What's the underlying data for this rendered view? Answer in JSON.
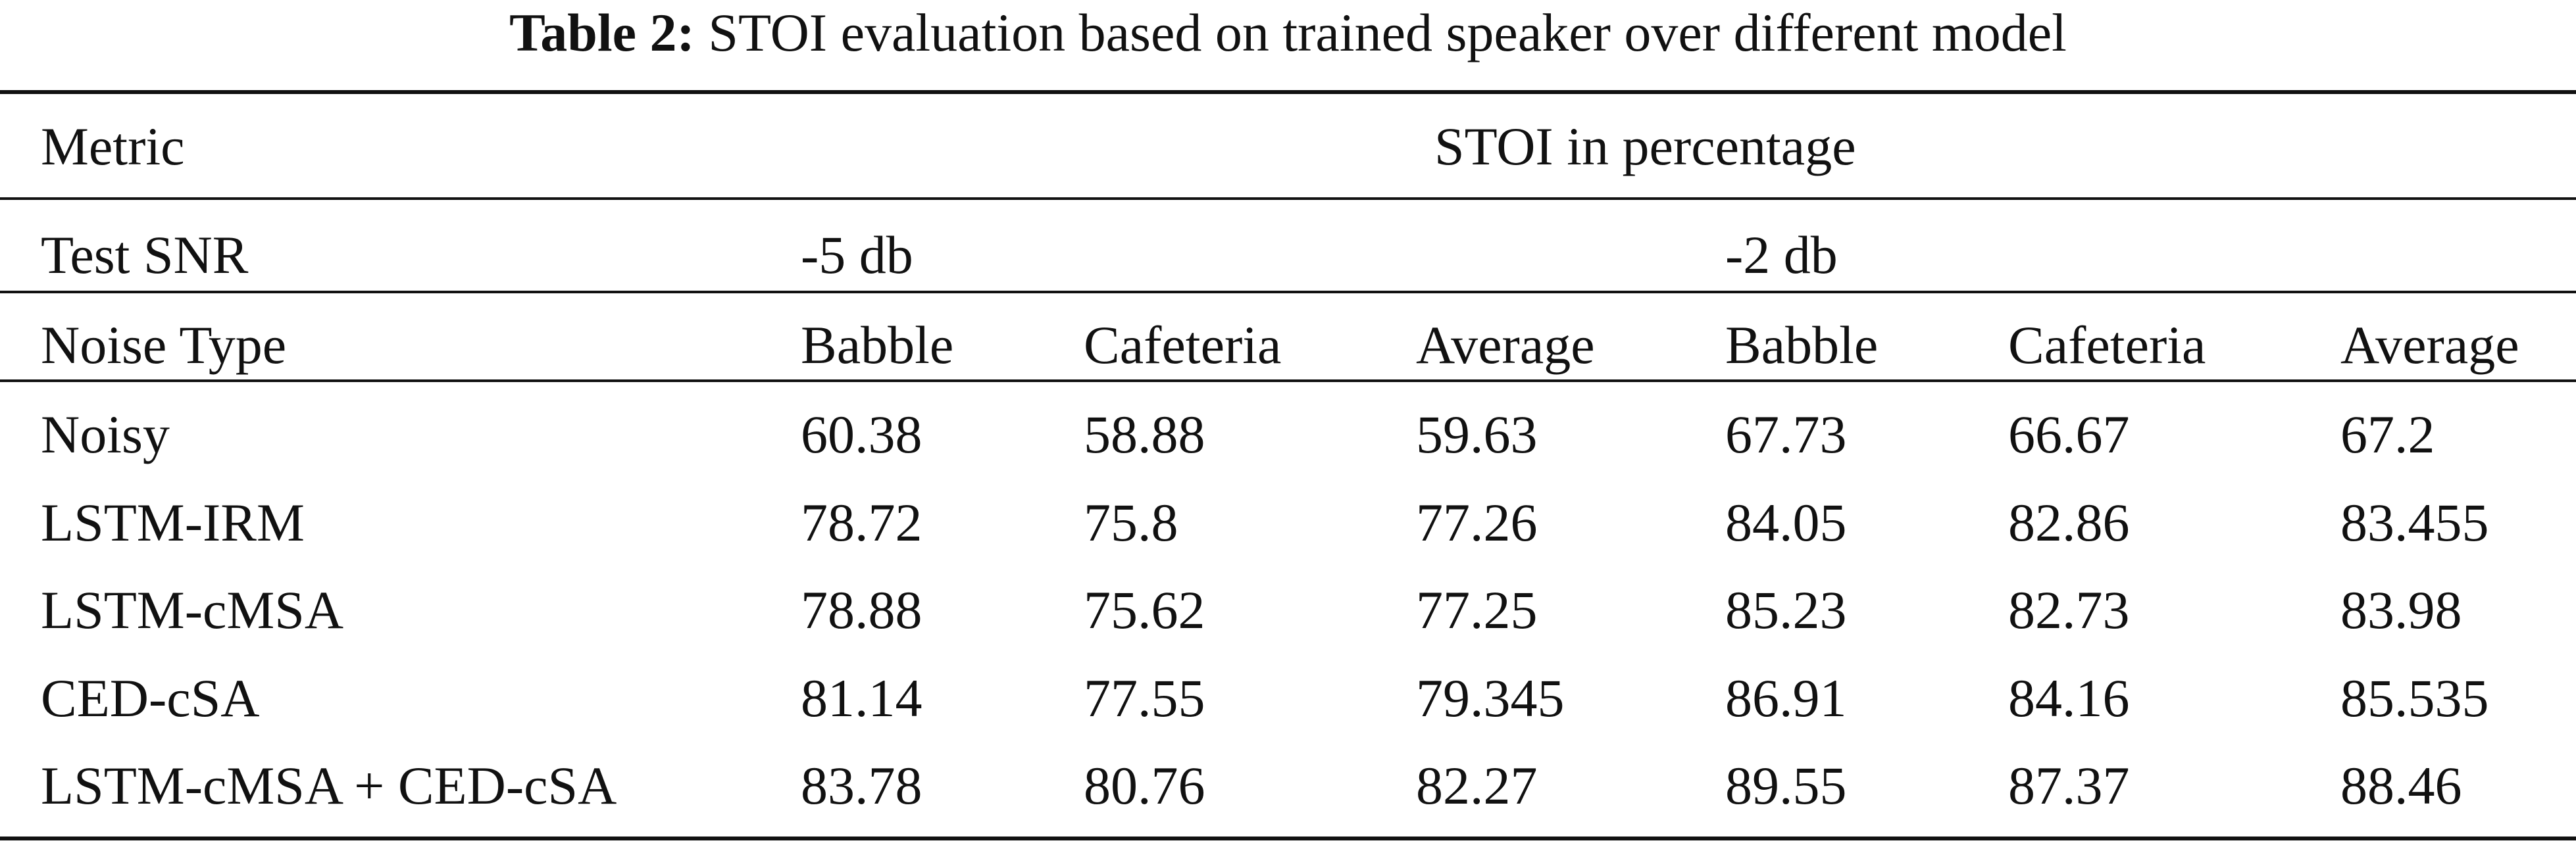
{
  "caption": {
    "label": "Table 2:",
    "text": " STOI evaluation based on trained speaker over different model"
  },
  "table": {
    "metric_label": "Metric",
    "metric_value": "STOI in percentage",
    "snr_label": "Test SNR",
    "snr_groups": [
      "-5 db",
      "-2 db"
    ],
    "noise_label": "Noise Type",
    "noise_types": [
      "Babble",
      "Cafeteria",
      "Average",
      "Babble",
      "Cafeteria",
      "Average"
    ],
    "rows": [
      {
        "model": "Noisy",
        "values": [
          "60.38",
          "58.88",
          "59.63",
          "67.73",
          "66.67",
          "67.2"
        ]
      },
      {
        "model": "LSTM-IRM",
        "values": [
          "78.72",
          "75.8",
          "77.26",
          "84.05",
          "82.86",
          "83.455"
        ]
      },
      {
        "model": "LSTM-cMSA",
        "values": [
          "78.88",
          "75.62",
          "77.25",
          "85.23",
          "82.73",
          "83.98"
        ]
      },
      {
        "model": "CED-cSA",
        "values": [
          "81.14",
          "77.55",
          "79.345",
          "86.91",
          "84.16",
          "85.535"
        ]
      },
      {
        "model": "LSTM-cMSA + CED-cSA",
        "values": [
          "83.78",
          "80.76",
          "82.27",
          "89.55",
          "87.37",
          "88.46"
        ]
      }
    ]
  }
}
